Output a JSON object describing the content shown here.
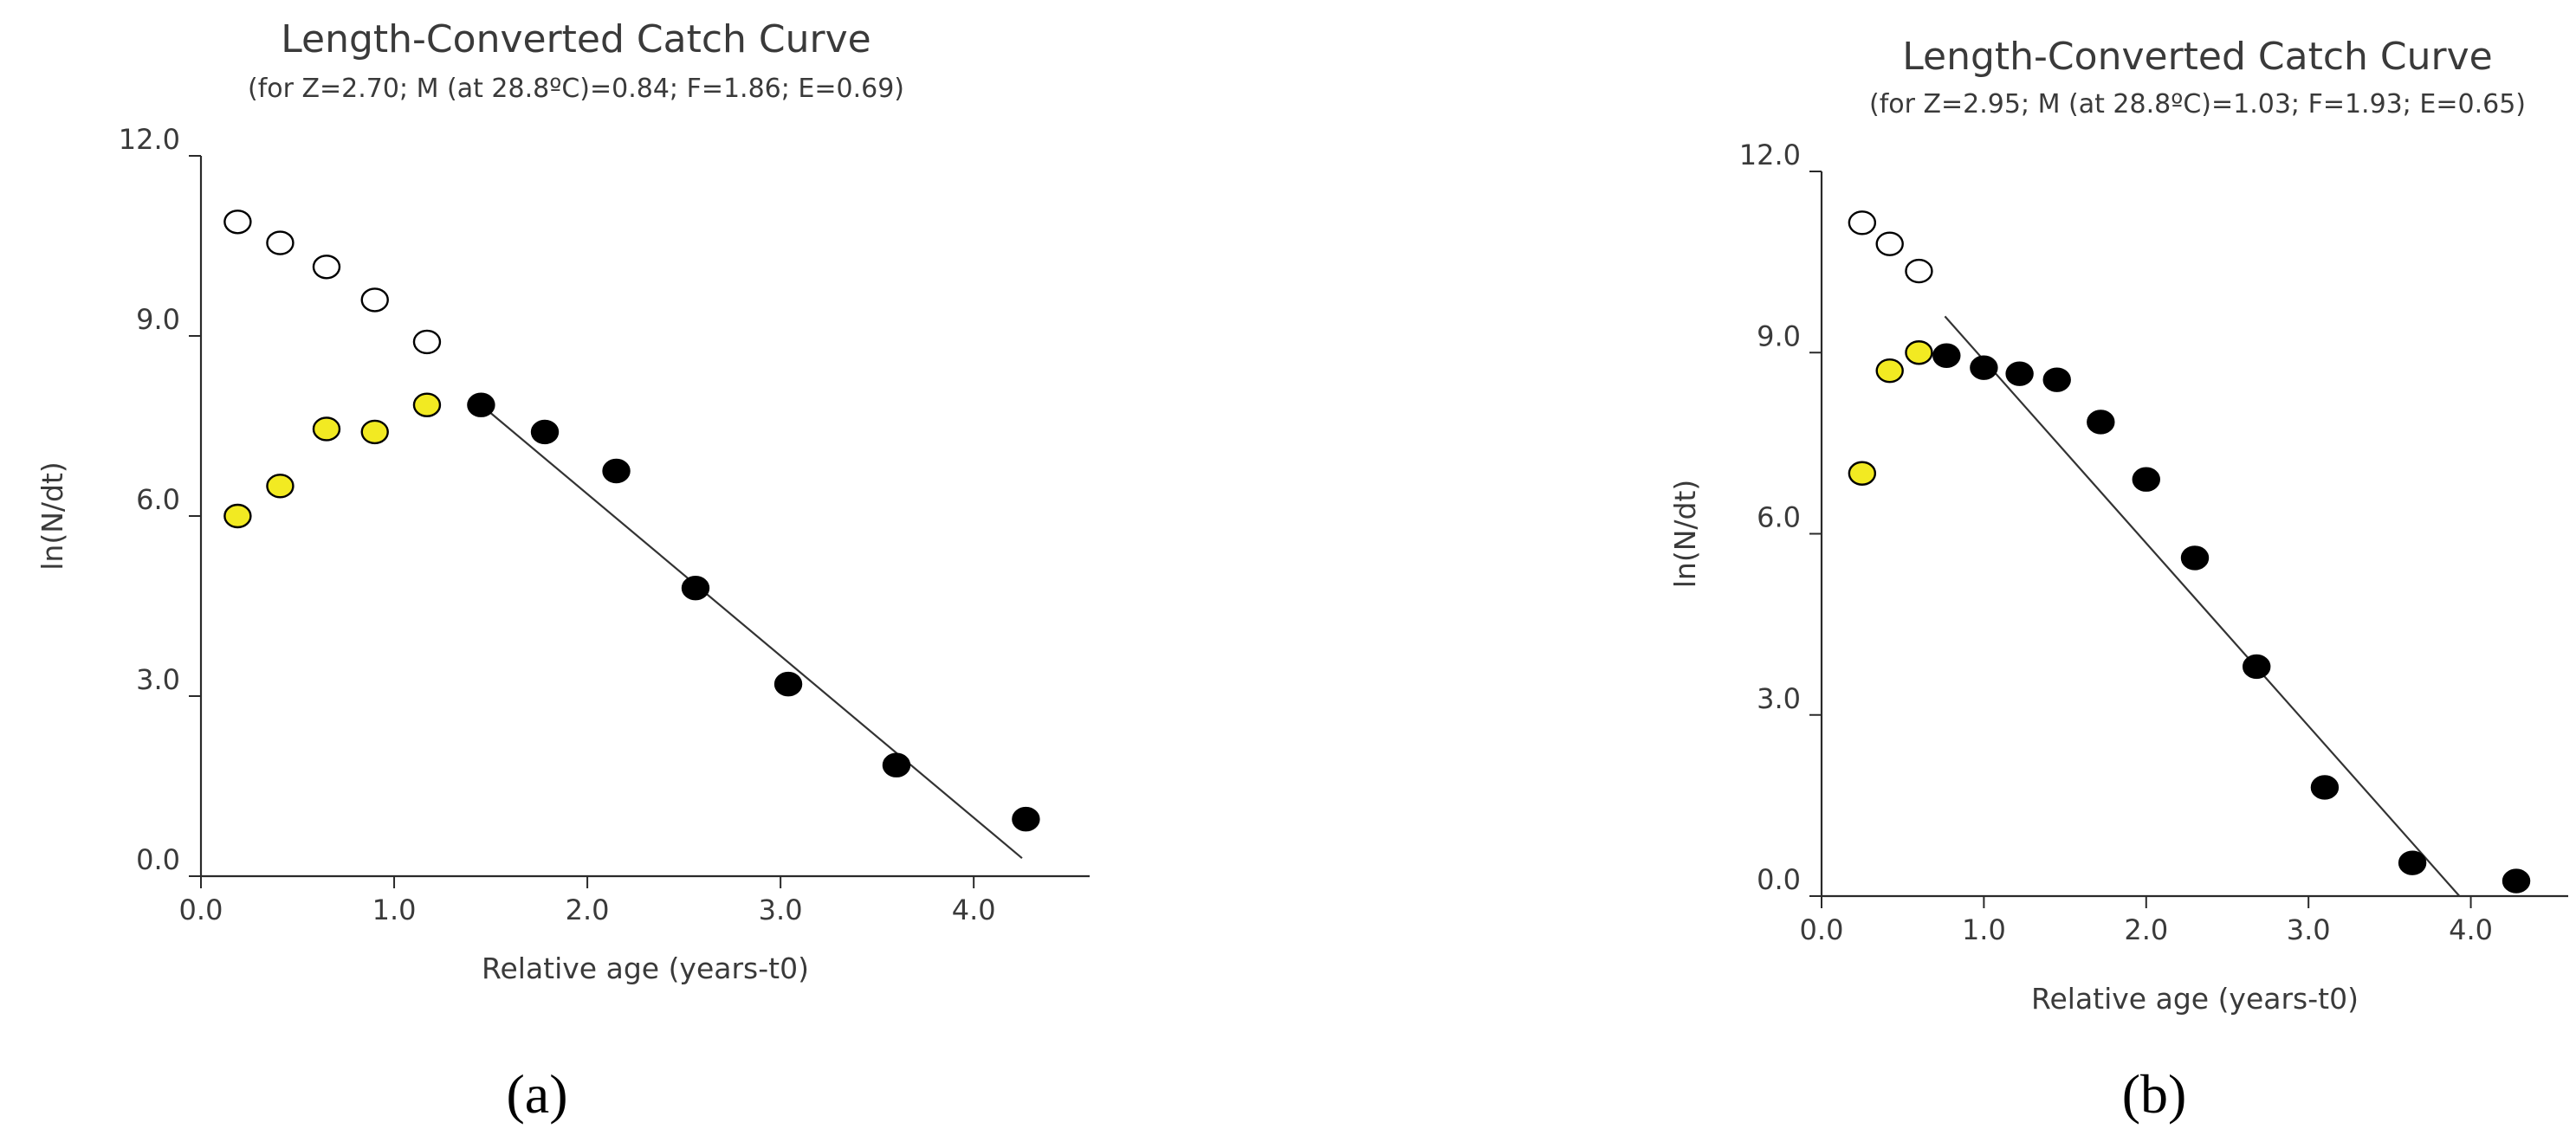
{
  "chart_data": [
    {
      "type": "scatter",
      "panel_label": "(a)",
      "title": "Length-Converted Catch Curve",
      "subtitle": "(for Z=2.70; M (at 28.8ºC)=0.84; F=1.86; E=0.69)",
      "xlabel": "Relative age (years-t0)",
      "ylabel": "ln(N/dt)",
      "xlim": [
        0,
        4.6
      ],
      "ylim": [
        0,
        12
      ],
      "xticks": [
        "0.0",
        "1.0",
        "2.0",
        "3.0",
        "4.0"
      ],
      "yticks": [
        "0.0",
        "3.0",
        "6.0",
        "9.0",
        "12.0"
      ],
      "grid": false,
      "series": [
        {
          "color": "#ffffff",
          "x": [
            0.19,
            0.41,
            0.65,
            0.9,
            1.17
          ],
          "y": [
            10.9,
            10.55,
            10.15,
            9.6,
            8.9
          ]
        },
        {
          "color": "#f2ea22",
          "x": [
            0.19,
            0.41,
            0.65,
            0.9,
            1.17
          ],
          "y": [
            6.0,
            6.5,
            7.45,
            7.4,
            7.85
          ]
        },
        {
          "color": "#000000",
          "x": [
            1.45,
            1.78,
            2.15,
            2.56,
            3.04,
            3.6,
            4.27
          ],
          "y": [
            7.85,
            7.4,
            6.75,
            4.8,
            3.2,
            1.85,
            0.95
          ]
        }
      ],
      "regression_line": {
        "x": [
          1.45,
          4.25
        ],
        "y": [
          7.85,
          0.3
        ]
      }
    },
    {
      "type": "scatter",
      "panel_label": "(b)",
      "title": "Length-Converted Catch Curve",
      "subtitle": "(for Z=2.95; M (at 28.8ºC)=1.03; F=1.93; E=0.65)",
      "xlabel": "Relative age (years-t0)",
      "ylabel": "ln(N/dt)",
      "xlim": [
        0,
        4.6
      ],
      "ylim": [
        0,
        12
      ],
      "xticks": [
        "0.0",
        "1.0",
        "2.0",
        "3.0",
        "4.0"
      ],
      "yticks": [
        "0.0",
        "3.0",
        "6.0",
        "9.0",
        "12.0"
      ],
      "grid": false,
      "series": [
        {
          "color": "#ffffff",
          "x": [
            0.25,
            0.42,
            0.6
          ],
          "y": [
            11.15,
            10.8,
            10.35
          ]
        },
        {
          "color": "#f2ea22",
          "x": [
            0.25,
            0.42,
            0.6
          ],
          "y": [
            7.0,
            8.7,
            9.0
          ]
        },
        {
          "color": "#000000",
          "x": [
            0.77,
            1.0,
            1.22,
            1.45,
            1.72,
            2.0,
            2.3,
            2.68,
            3.1,
            3.64,
            4.28
          ],
          "y": [
            8.95,
            8.75,
            8.65,
            8.55,
            7.85,
            6.9,
            5.6,
            3.8,
            1.8,
            0.55,
            0.25
          ]
        }
      ],
      "regression_line": {
        "x": [
          0.76,
          3.93
        ],
        "y": [
          9.6,
          0.0
        ]
      }
    }
  ]
}
